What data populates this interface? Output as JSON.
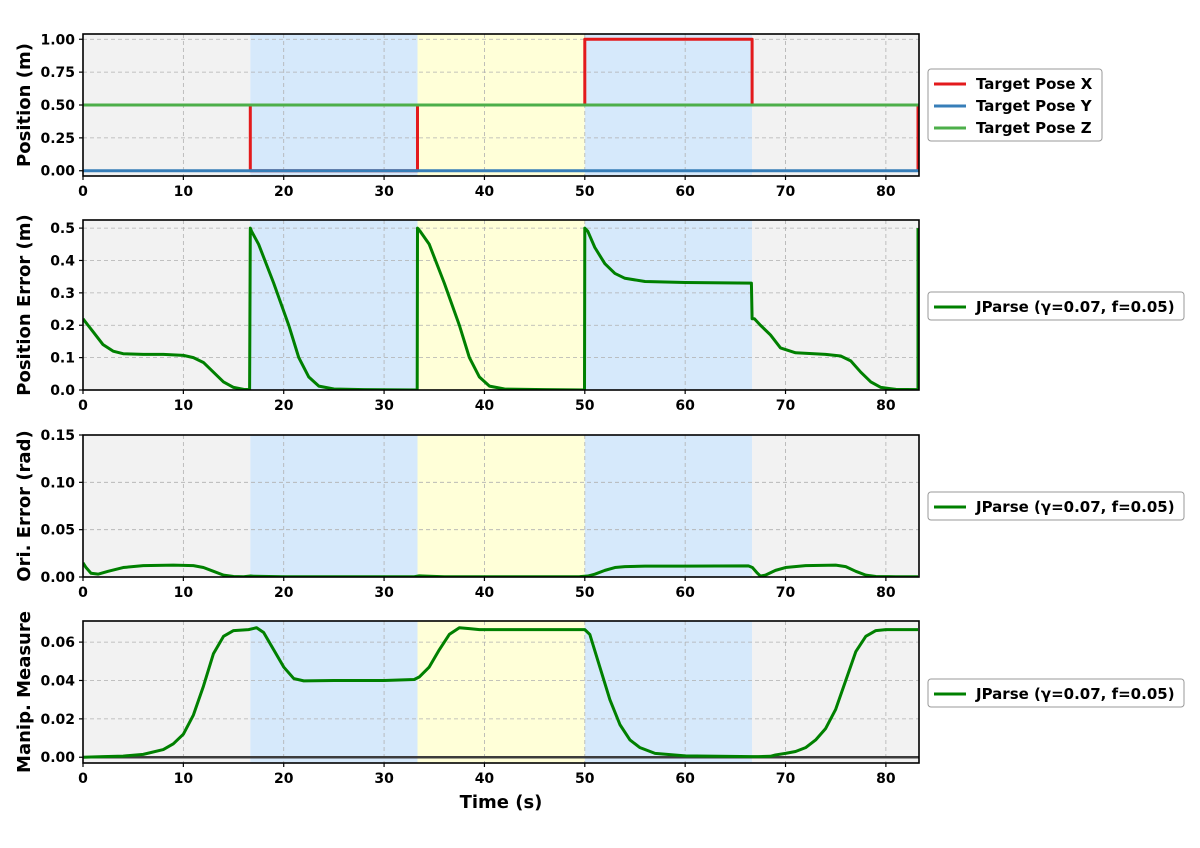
{
  "figure": {
    "xlabel": "Time (s)",
    "xlim": [
      0,
      83.3
    ],
    "x_ticks": [
      0,
      10,
      20,
      30,
      40,
      50,
      60,
      70,
      80
    ],
    "grid": true,
    "phase_regions": [
      {
        "x0": 0,
        "x1": 16.67,
        "color": "#f2f2f2"
      },
      {
        "x0": 16.67,
        "x1": 33.33,
        "color": "#d6e9fb"
      },
      {
        "x0": 33.33,
        "x1": 50.0,
        "color": "#ffffd8"
      },
      {
        "x0": 50.0,
        "x1": 66.67,
        "color": "#d6e9fb"
      },
      {
        "x0": 66.67,
        "x1": 83.3,
        "color": "#f2f2f2"
      }
    ]
  },
  "chart_data": [
    {
      "type": "line",
      "ylabel": "Position (m)",
      "ylim": [
        -0.04,
        1.04
      ],
      "y_ticks": [
        "0.00",
        "0.25",
        "0.50",
        "0.75",
        "1.00"
      ],
      "legend_position": "outside-right",
      "series": [
        {
          "name": "Target Pose X",
          "color": "#e31a1c",
          "x": [
            0,
            16.67,
            16.67,
            33.33,
            33.33,
            50.0,
            50.0,
            66.67,
            66.67,
            83.2,
            83.2
          ],
          "y": [
            0.5,
            0.5,
            0.0,
            0.0,
            0.5,
            0.5,
            1.0,
            1.0,
            0.5,
            0.5,
            0.0
          ]
        },
        {
          "name": "Target Pose Y",
          "color": "#377eb8",
          "x": [
            0,
            83.3
          ],
          "y": [
            0.0,
            0.0
          ]
        },
        {
          "name": "Target Pose Z",
          "color": "#4daf4a",
          "x": [
            0,
            83.3
          ],
          "y": [
            0.5,
            0.5
          ]
        }
      ]
    },
    {
      "type": "line",
      "ylabel": "Position Error (m)",
      "ylim": [
        0,
        0.525
      ],
      "y_ticks": [
        "0.0",
        "0.1",
        "0.2",
        "0.3",
        "0.4",
        "0.5"
      ],
      "legend_position": "outside-right",
      "series": [
        {
          "name": "JParse (γ=0.07, f=0.05)",
          "color": "#008000",
          "x": [
            0,
            0.5,
            1,
            2,
            3,
            4,
            6,
            8,
            10,
            11,
            12,
            13,
            14,
            15,
            16,
            16.6,
            16.67,
            16.8,
            17.5,
            19,
            20.5,
            21.5,
            22.5,
            23.5,
            25,
            28,
            33.3,
            33.33,
            33.6,
            34.5,
            36,
            37.5,
            38.5,
            39.5,
            40.5,
            42,
            46,
            49.97,
            50.0,
            50.3,
            51,
            52,
            53,
            54,
            56,
            60,
            66.6,
            66.67,
            66.9,
            67.5,
            68.5,
            69.5,
            71,
            74,
            75.5,
            76.5,
            77.5,
            78.5,
            79.5,
            81,
            83.2,
            83.2
          ],
          "y": [
            0.22,
            0.2,
            0.18,
            0.14,
            0.12,
            0.112,
            0.11,
            0.11,
            0.107,
            0.1,
            0.085,
            0.055,
            0.025,
            0.008,
            0.002,
            0.001,
            0.5,
            0.49,
            0.45,
            0.33,
            0.2,
            0.1,
            0.04,
            0.012,
            0.003,
            0.001,
            0.0,
            0.5,
            0.49,
            0.45,
            0.33,
            0.2,
            0.1,
            0.04,
            0.012,
            0.003,
            0.001,
            0.0,
            0.5,
            0.49,
            0.44,
            0.39,
            0.36,
            0.345,
            0.335,
            0.332,
            0.33,
            0.22,
            0.22,
            0.2,
            0.17,
            0.13,
            0.115,
            0.11,
            0.105,
            0.09,
            0.055,
            0.025,
            0.008,
            0.002,
            0.001,
            0.5
          ]
        }
      ]
    },
    {
      "type": "line",
      "ylabel": "Ori. Error (rad)",
      "ylim": [
        0,
        0.15
      ],
      "y_ticks": [
        "0.00",
        "0.05",
        "0.10",
        "0.15"
      ],
      "legend_position": "outside-right",
      "series": [
        {
          "name": "JParse (γ=0.07, f=0.05)",
          "color": "#008000",
          "x": [
            0,
            0.3,
            0.8,
            1.5,
            2.5,
            4,
            6,
            9,
            11,
            12,
            13,
            14,
            15,
            16,
            16.7,
            17,
            20,
            33,
            33.5,
            34.5,
            36,
            45,
            49.5,
            50.3,
            51,
            52,
            53,
            54,
            56,
            60,
            66.3,
            66.7,
            67.2,
            67.5,
            68,
            69,
            70,
            72,
            75,
            76,
            77,
            78,
            79,
            81,
            83.2
          ],
          "y": [
            0.015,
            0.01,
            0.004,
            0.003,
            0.006,
            0.01,
            0.012,
            0.0125,
            0.012,
            0.01,
            0.006,
            0.002,
            0.0005,
            0.0003,
            0.001,
            0.0008,
            0.0003,
            0.0003,
            0.0012,
            0.0008,
            0.0003,
            0.0003,
            0.0004,
            0.001,
            0.003,
            0.007,
            0.01,
            0.011,
            0.0115,
            0.0115,
            0.0118,
            0.01,
            0.004,
            0.001,
            0.002,
            0.007,
            0.01,
            0.012,
            0.0125,
            0.011,
            0.006,
            0.002,
            0.0005,
            0.0003,
            0.0003
          ]
        }
      ]
    },
    {
      "type": "line",
      "ylabel": "Manip. Measure",
      "ylim": [
        -0.003,
        0.071
      ],
      "y_ticks": [
        "0.00",
        "0.02",
        "0.04",
        "0.06"
      ],
      "legend_position": "outside-right",
      "baseline": {
        "y": 0,
        "color": "#3c3c3c"
      },
      "series": [
        {
          "name": "JParse (γ=0.07, f=0.05)",
          "color": "#008000",
          "x": [
            0,
            2,
            4,
            6,
            8,
            9,
            10,
            11,
            12,
            13,
            14,
            15,
            16.5,
            17.3,
            18,
            19,
            20,
            21,
            22,
            25,
            30,
            33,
            33.5,
            34.5,
            35.5,
            36.5,
            37.5,
            38.5,
            39.5,
            42,
            50.0,
            50.5,
            51.5,
            52.5,
            53.5,
            54.5,
            55.5,
            57,
            60,
            66.6,
            67.3,
            68.5,
            69,
            70,
            71,
            72,
            73,
            74,
            75,
            76,
            77,
            78,
            79,
            80,
            83.2
          ],
          "y": [
            0.0,
            0.0003,
            0.0006,
            0.0015,
            0.004,
            0.007,
            0.012,
            0.022,
            0.037,
            0.054,
            0.063,
            0.066,
            0.0665,
            0.0675,
            0.065,
            0.056,
            0.047,
            0.041,
            0.0398,
            0.04,
            0.04,
            0.0405,
            0.0418,
            0.047,
            0.056,
            0.064,
            0.0675,
            0.067,
            0.0665,
            0.0665,
            0.0665,
            0.064,
            0.047,
            0.03,
            0.017,
            0.009,
            0.005,
            0.002,
            0.0007,
            0.0003,
            0.0003,
            0.0005,
            0.0012,
            0.002,
            0.003,
            0.005,
            0.009,
            0.015,
            0.025,
            0.04,
            0.055,
            0.063,
            0.066,
            0.0665,
            0.0665
          ]
        }
      ]
    }
  ]
}
